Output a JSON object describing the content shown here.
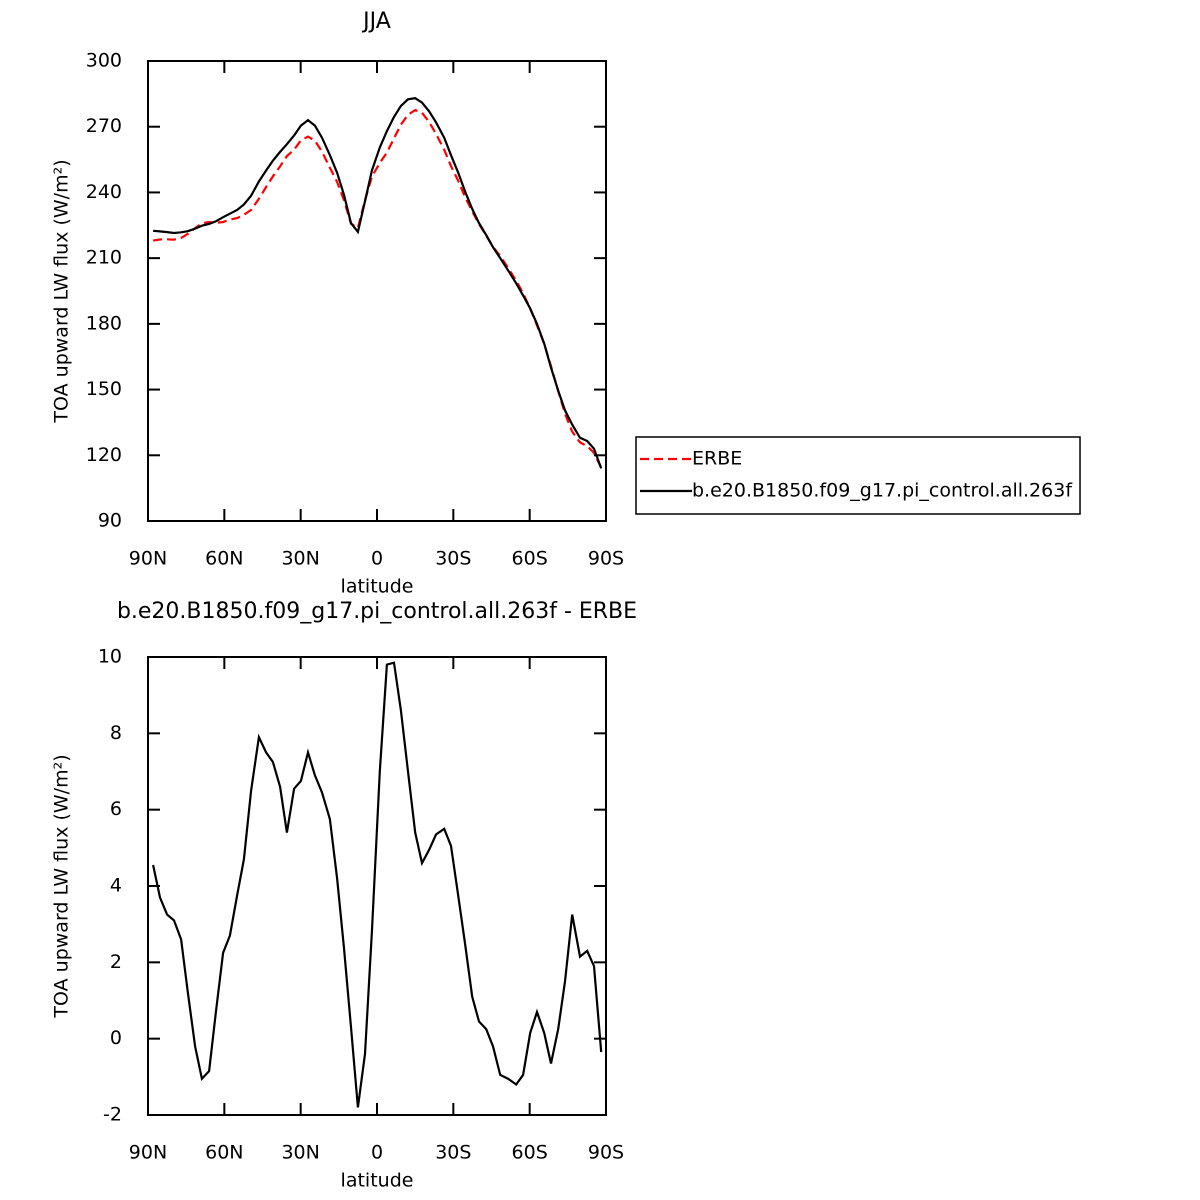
{
  "chart_data": [
    {
      "type": "line",
      "title": "JJA",
      "x_label": "latitude",
      "y_label": "TOA upward LW flux (W/m²)",
      "x": [
        88.0,
        85.3,
        82.5,
        79.8,
        77.0,
        74.3,
        71.5,
        68.8,
        66.0,
        63.3,
        60.5,
        57.8,
        55.0,
        52.3,
        49.5,
        46.4,
        43.6,
        40.9,
        38.1,
        35.4,
        32.6,
        29.9,
        27.1,
        24.4,
        21.6,
        18.5,
        15.7,
        13.0,
        10.2,
        7.5,
        4.7,
        2.0,
        -1.1,
        -3.9,
        -6.7,
        -9.4,
        -12.2,
        -15.0,
        -17.7,
        -20.5,
        -23.2,
        -26.4,
        -29.1,
        -31.9,
        -34.6,
        -37.4,
        -40.1,
        -42.9,
        -45.6,
        -48.4,
        -51.5,
        -54.7,
        -57.4,
        -60.2,
        -62.9,
        -65.7,
        -68.4,
        -71.2,
        -73.9,
        -76.7,
        -79.8,
        -82.6,
        -85.3,
        -88.1
      ],
      "series": [
        {
          "name": "ERBE",
          "color": "#ff0000",
          "dash": "dashed",
          "values": [
            218.0,
            218.5,
            218.6,
            218.4,
            219.2,
            221.1,
            223.7,
            225.9,
            226.5,
            226.1,
            226.5,
            227.6,
            228.3,
            229.8,
            232.0,
            237.1,
            242.5,
            247.3,
            251.9,
            256.6,
            259.5,
            263.8,
            265.5,
            263.6,
            258.6,
            251.3,
            244.8,
            236.6,
            225.7,
            223.8,
            236.4,
            247.2,
            253.5,
            258.2,
            264.7,
            270.9,
            275.5,
            277.6,
            276.4,
            272.1,
            266.7,
            259.5,
            252.0,
            245.3,
            238.0,
            231.4,
            225.6,
            220.3,
            215.2,
            211.0,
            205.6,
            199.7,
            194.0,
            186.9,
            179.3,
            170.9,
            160.7,
            149.3,
            139.0,
            130.8,
            125.9,
            124.2,
            121.1,
            114.4
          ]
        },
        {
          "name": "b.e20.B1850.f09_g17.pi_control.all.263f",
          "color": "#000000",
          "dash": "solid",
          "values": [
            222.5,
            222.2,
            221.9,
            221.5,
            221.8,
            222.3,
            223.5,
            224.8,
            225.6,
            226.8,
            228.7,
            230.3,
            232.0,
            234.5,
            238.5,
            245.0,
            250.0,
            254.5,
            258.5,
            262.0,
            266.0,
            270.5,
            273.0,
            270.5,
            265.0,
            257.0,
            249.0,
            239.0,
            226.0,
            222.0,
            236.0,
            250.0,
            260.5,
            268.0,
            274.5,
            279.5,
            282.5,
            283.0,
            281.0,
            277.0,
            272.0,
            265.0,
            257.0,
            249.0,
            240.5,
            232.5,
            226.0,
            220.5,
            215.0,
            210.0,
            204.5,
            198.5,
            193.0,
            187.0,
            180.0,
            171.0,
            160.0,
            149.5,
            140.5,
            134.0,
            128.0,
            126.5,
            123.0,
            114.0
          ]
        }
      ],
      "xlim": [
        90,
        -90
      ],
      "xticks": [
        {
          "value": 90,
          "label": "90N"
        },
        {
          "value": 60,
          "label": "60N"
        },
        {
          "value": 30,
          "label": "30N"
        },
        0,
        {
          "value": -30,
          "label": "30S"
        },
        {
          "value": -60,
          "label": "60S"
        },
        {
          "value": -90,
          "label": "90S"
        }
      ],
      "ylim": [
        90,
        300
      ],
      "yticks": [
        90,
        120,
        150,
        180,
        210,
        240,
        270,
        300
      ],
      "legend": "right"
    },
    {
      "type": "line",
      "title": "b.e20.B1850.f09_g17.pi_control.all.263f - ERBE",
      "x_label": "latitude",
      "y_label": "TOA upward LW flux (W/m²)",
      "x": [
        88.0,
        85.3,
        82.5,
        79.8,
        77.0,
        74.3,
        71.5,
        68.8,
        66.0,
        63.3,
        60.5,
        57.8,
        55.0,
        52.3,
        49.5,
        46.4,
        43.6,
        40.9,
        38.1,
        35.4,
        32.6,
        29.9,
        27.1,
        24.4,
        21.6,
        18.5,
        15.7,
        13.0,
        10.2,
        7.5,
        4.7,
        2.0,
        -1.1,
        -3.9,
        -6.7,
        -9.4,
        -12.2,
        -15.0,
        -17.7,
        -20.5,
        -23.2,
        -26.4,
        -29.1,
        -31.9,
        -34.6,
        -37.4,
        -40.1,
        -42.9,
        -45.6,
        -48.4,
        -51.5,
        -54.7,
        -57.4,
        -60.2,
        -62.9,
        -65.7,
        -68.4,
        -71.2,
        -73.9,
        -76.7,
        -79.8,
        -82.6,
        -85.3,
        -88.1
      ],
      "series": [
        {
          "color": "#000000",
          "dash": "solid",
          "values": [
            4.55,
            3.7,
            3.25,
            3.1,
            2.6,
            1.2,
            -0.2,
            -1.05,
            -0.85,
            0.7,
            2.25,
            2.7,
            3.75,
            4.7,
            6.5,
            7.9,
            7.5,
            7.25,
            6.6,
            5.4,
            6.55,
            6.75,
            7.5,
            6.9,
            6.45,
            5.75,
            4.2,
            2.4,
            0.3,
            -1.8,
            -0.4,
            2.8,
            7.0,
            9.8,
            9.85,
            8.6,
            7.0,
            5.4,
            4.6,
            4.95,
            5.35,
            5.5,
            5.05,
            3.75,
            2.5,
            1.1,
            0.45,
            0.25,
            -0.2,
            -0.95,
            -1.05,
            -1.2,
            -0.95,
            0.15,
            0.7,
            0.15,
            -0.65,
            0.25,
            1.5,
            3.25,
            2.15,
            2.3,
            1.9,
            -0.35
          ]
        }
      ],
      "xlim": [
        90,
        -90
      ],
      "xticks": [
        {
          "value": 90,
          "label": "90N"
        },
        {
          "value": 60,
          "label": "60N"
        },
        {
          "value": 30,
          "label": "30N"
        },
        0,
        {
          "value": -30,
          "label": "30S"
        },
        {
          "value": -60,
          "label": "60S"
        },
        {
          "value": -90,
          "label": "90S"
        }
      ],
      "ylim": [
        -2,
        10
      ],
      "yticks": [
        -2,
        0,
        2,
        4,
        6,
        8,
        10
      ]
    }
  ]
}
